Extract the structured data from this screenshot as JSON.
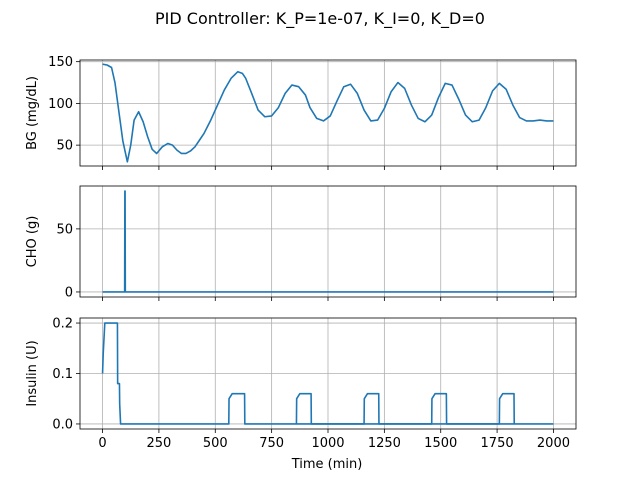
{
  "figure": {
    "title": "PID Controller: K_P=1e-07, K_I=0, K_D=0"
  },
  "chart_data": {
    "type": "line",
    "shared_x": true,
    "xlabel": "Time (min)",
    "xlim": [
      -100,
      2100
    ],
    "xticks": [
      0,
      250,
      500,
      750,
      1000,
      1250,
      1500,
      1750,
      2000
    ],
    "grid": true,
    "line_color": "#1f77b4",
    "panels": [
      {
        "ylabel": "BG (mg/dL)",
        "ylim": [
          25,
          152
        ],
        "yticks": [
          50,
          100,
          150
        ],
        "x": [
          0,
          20,
          40,
          55,
          70,
          90,
          110,
          125,
          140,
          160,
          180,
          200,
          220,
          240,
          265,
          290,
          310,
          330,
          350,
          370,
          390,
          410,
          430,
          450,
          480,
          510,
          540,
          570,
          600,
          620,
          635,
          660,
          690,
          720,
          750,
          780,
          810,
          840,
          870,
          900,
          920,
          950,
          980,
          1010,
          1040,
          1070,
          1100,
          1130,
          1160,
          1190,
          1220,
          1250,
          1280,
          1310,
          1340,
          1370,
          1400,
          1430,
          1460,
          1490,
          1520,
          1550,
          1580,
          1610,
          1640,
          1670,
          1700,
          1730,
          1760,
          1790,
          1820,
          1850,
          1880,
          1910,
          1940,
          1970,
          2000
        ],
        "y": [
          147,
          146,
          143,
          125,
          95,
          55,
          30,
          50,
          80,
          90,
          78,
          60,
          45,
          40,
          48,
          52,
          50,
          44,
          40,
          40,
          43,
          48,
          56,
          64,
          80,
          98,
          116,
          130,
          138,
          136,
          130,
          113,
          92,
          84,
          85,
          95,
          112,
          122,
          120,
          110,
          95,
          82,
          79,
          85,
          103,
          120,
          123,
          112,
          92,
          79,
          80,
          94,
          114,
          125,
          118,
          98,
          82,
          78,
          86,
          107,
          124,
          122,
          105,
          86,
          78,
          80,
          95,
          115,
          124,
          117,
          98,
          83,
          79,
          79,
          80,
          79,
          79
        ]
      },
      {
        "ylabel": "CHO (g)",
        "ylim": [
          -4,
          84
        ],
        "yticks": [
          0,
          50
        ],
        "x": [
          0,
          98,
          99,
          100,
          101,
          102,
          2000
        ],
        "y": [
          0,
          0,
          80,
          80,
          0,
          0,
          0
        ]
      },
      {
        "ylabel": "Insulin (U)",
        "ylim": [
          -0.01,
          0.21
        ],
        "yticks": [
          0.0,
          0.1,
          0.2
        ],
        "yticklabels": [
          "0.0",
          "0.1",
          "0.2"
        ],
        "x": [
          0,
          3,
          10,
          66,
          67,
          68,
          75,
          76,
          80,
          560,
          561,
          575,
          630,
          631,
          2000
        ],
        "y": [
          0.1,
          0.14,
          0.2,
          0.2,
          0.08,
          0.08,
          0.08,
          0.04,
          0,
          0,
          0.05,
          0.06,
          0.06,
          0,
          0
        ],
        "x2": [
          860,
          861,
          875,
          925,
          926,
          1160,
          1161,
          1175,
          1225,
          1226,
          1460,
          1461,
          1475,
          1525,
          1526,
          1760,
          1761,
          1775,
          1825,
          1826
        ],
        "y2": [
          0,
          0.05,
          0.06,
          0.06,
          0,
          0,
          0.05,
          0.06,
          0.06,
          0,
          0,
          0.05,
          0.06,
          0.06,
          0,
          0,
          0.05,
          0.06,
          0.06,
          0
        ]
      }
    ]
  }
}
